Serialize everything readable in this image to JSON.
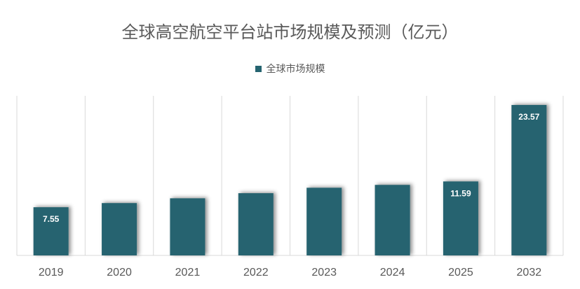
{
  "chart_data": {
    "type": "bar",
    "title": "全球高空航空平台站市场规模及预测（亿元）",
    "legend_position": "top",
    "grid": "vertical-category-separators",
    "categories": [
      "2019",
      "2020",
      "2021",
      "2022",
      "2023",
      "2024",
      "2025",
      "2032"
    ],
    "series": [
      {
        "name": "全球市场规模",
        "color": "#256470",
        "values": [
          7.55,
          8.2,
          8.95,
          9.75,
          10.6,
          11.05,
          11.59,
          23.57
        ],
        "data_labels": [
          "7.55",
          "",
          "",
          "",
          "",
          "",
          "11.59",
          "23.57"
        ]
      }
    ],
    "ylim": [
      0,
      25
    ]
  }
}
